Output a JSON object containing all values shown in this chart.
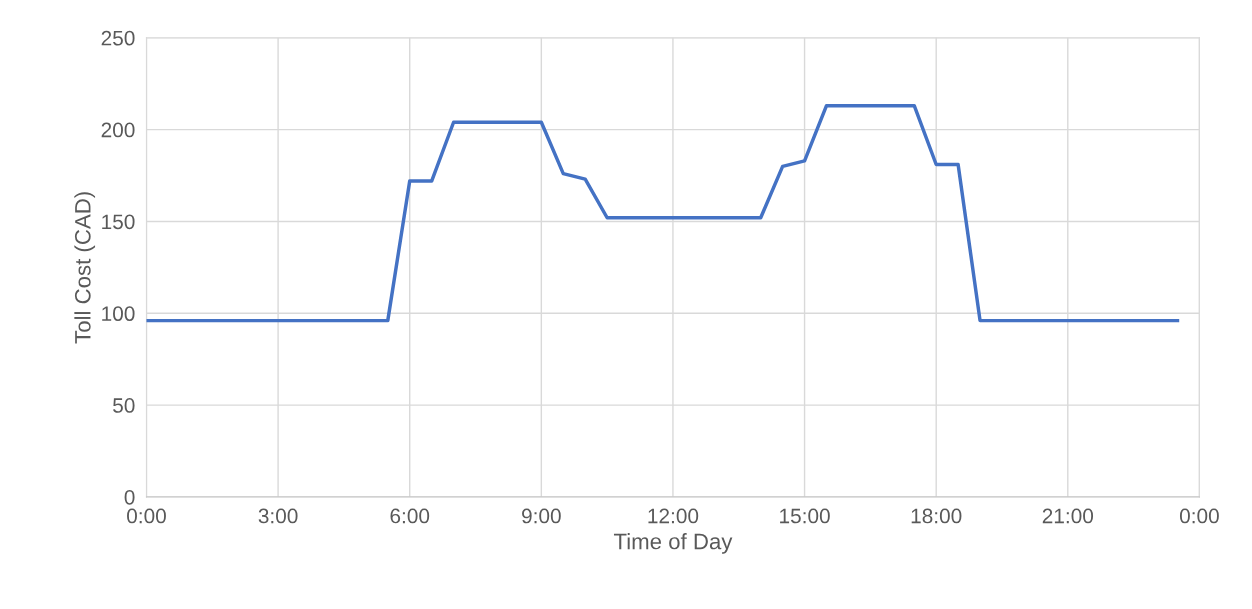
{
  "chart_data": {
    "type": "line",
    "xlabel": "Time of Day",
    "ylabel": "Toll Cost (CAD)",
    "x": [
      0,
      5.5,
      6,
      6.5,
      7,
      9,
      9.5,
      10,
      10.5,
      14,
      14.5,
      15,
      15.5,
      17.5,
      18,
      18.5,
      19,
      23.5
    ],
    "series": [
      {
        "color": "#4472c4",
        "values": [
          96,
          96,
          172,
          172,
          204,
          204,
          176,
          173,
          152,
          152,
          180,
          183,
          213,
          213,
          181,
          181,
          96,
          96
        ]
      }
    ],
    "xlim": [
      0,
      24
    ],
    "xticks": [
      {
        "value": 0,
        "label": "0:00"
      },
      {
        "value": 3,
        "label": "3:00"
      },
      {
        "value": 6,
        "label": "6:00"
      },
      {
        "value": 9,
        "label": "9:00"
      },
      {
        "value": 12,
        "label": "12:00"
      },
      {
        "value": 15,
        "label": "15:00"
      },
      {
        "value": 18,
        "label": "18:00"
      },
      {
        "value": 21,
        "label": "21:00"
      },
      {
        "value": 24,
        "label": "0:00"
      }
    ],
    "ylim": [
      0,
      250
    ],
    "yticks": [
      0,
      50,
      100,
      150,
      200,
      250
    ],
    "grid": true,
    "marker": "none",
    "line_style": "solid",
    "legend": false
  }
}
